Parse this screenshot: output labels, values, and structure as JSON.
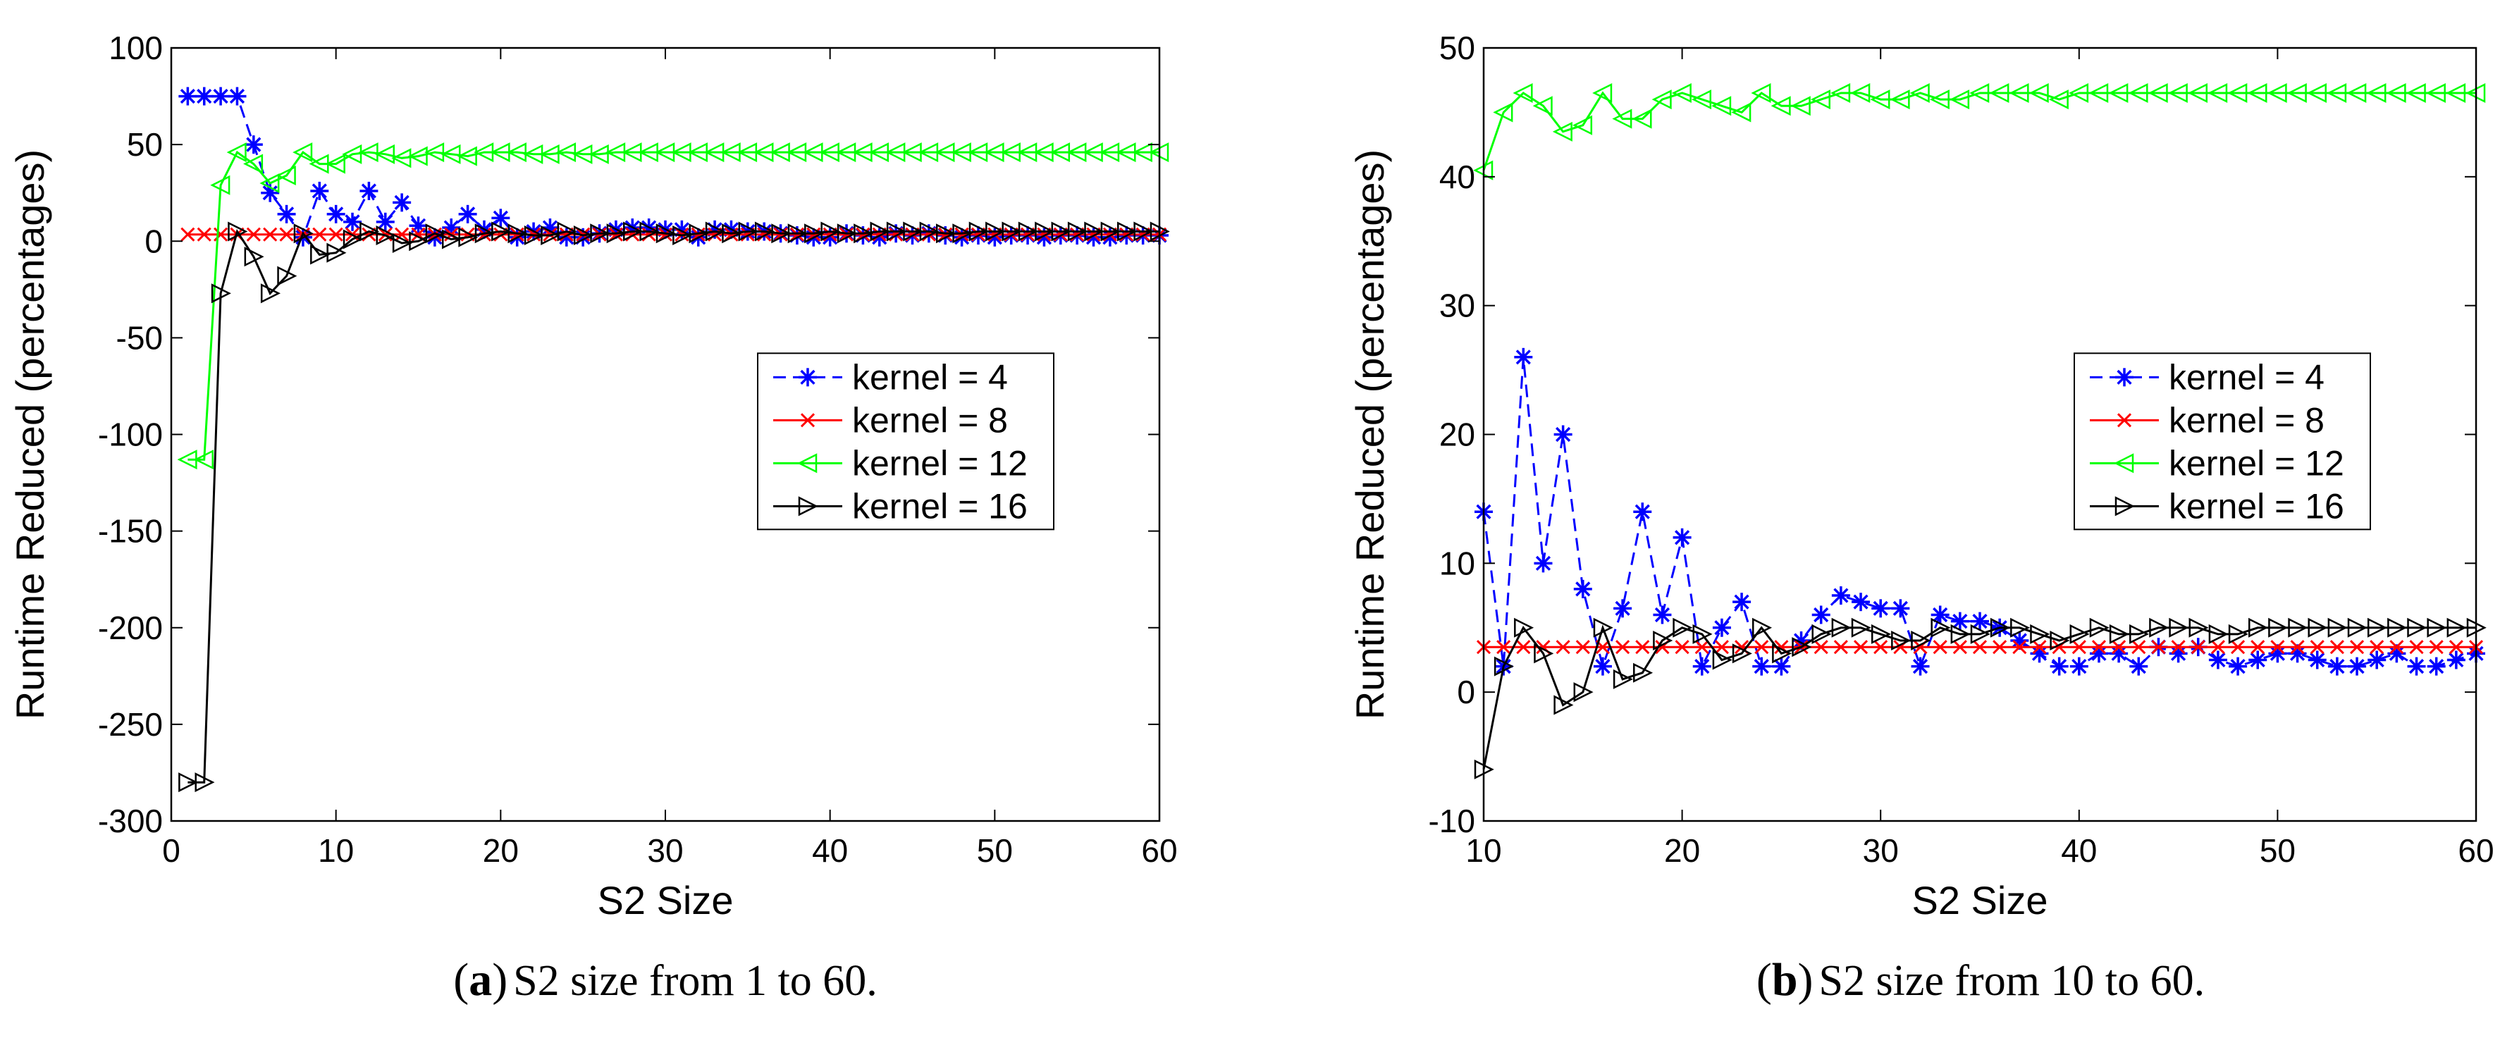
{
  "chart_data": [
    {
      "type": "line",
      "id": "a",
      "xlabel": "S2 Size",
      "ylabel": "Runtime Reduced (percentages)",
      "xlim": [
        0,
        60
      ],
      "ylim": [
        -300,
        100
      ],
      "xticks": [
        0,
        10,
        20,
        30,
        40,
        50,
        60
      ],
      "yticks": [
        -300,
        -250,
        -200,
        -150,
        -100,
        -50,
        0,
        50,
        100
      ],
      "legend_position": "center-right",
      "caption": {
        "tag": "a",
        "text": "S2 size from 1 to 60."
      },
      "series": [
        {
          "name": "kernel = 4",
          "color": "#0000ff",
          "marker": "asterisk",
          "line": "dashed",
          "x": [
            1,
            2,
            3,
            4,
            5,
            6,
            7,
            8,
            9,
            10,
            11,
            12,
            13,
            14,
            15,
            16,
            17,
            18,
            19,
            20,
            21,
            22,
            23,
            24,
            25,
            26,
            27,
            28,
            29,
            30,
            31,
            32,
            33,
            34,
            35,
            36,
            37,
            38,
            39,
            40,
            41,
            42,
            43,
            44,
            45,
            46,
            47,
            48,
            49,
            50,
            51,
            52,
            53,
            54,
            55,
            56,
            57,
            58,
            59,
            60
          ],
          "values": [
            75,
            75,
            75,
            75,
            50,
            25,
            14,
            2,
            26,
            14,
            10,
            26,
            10,
            20,
            8,
            2,
            7,
            14,
            6,
            12,
            2,
            5,
            7,
            2,
            2,
            4,
            6,
            7,
            7,
            6,
            6,
            2,
            6,
            6,
            5,
            5,
            4,
            3,
            2,
            2,
            4,
            3,
            2,
            4,
            3,
            4,
            3,
            2,
            3,
            2,
            3,
            3,
            2,
            3,
            3,
            2,
            2,
            3,
            3,
            3
          ]
        },
        {
          "name": "kernel = 8",
          "color": "#ff0000",
          "marker": "x",
          "line": "solid",
          "x": [
            1,
            2,
            3,
            4,
            5,
            6,
            7,
            8,
            9,
            10,
            11,
            12,
            13,
            14,
            15,
            16,
            17,
            18,
            19,
            20,
            21,
            22,
            23,
            24,
            25,
            26,
            27,
            28,
            29,
            30,
            31,
            32,
            33,
            34,
            35,
            36,
            37,
            38,
            39,
            40,
            41,
            42,
            43,
            44,
            45,
            46,
            47,
            48,
            49,
            50,
            51,
            52,
            53,
            54,
            55,
            56,
            57,
            58,
            59,
            60
          ],
          "values": [
            3.5,
            3.5,
            3.5,
            3.5,
            3.5,
            3.5,
            3.5,
            3.5,
            3.5,
            3.5,
            3.5,
            3.5,
            3.5,
            3.5,
            3.5,
            3.5,
            3.5,
            3.5,
            3.5,
            3.5,
            3.5,
            3.5,
            3.5,
            3.5,
            3.5,
            3.5,
            3.5,
            3.5,
            3.5,
            3.5,
            3.5,
            3.5,
            3.5,
            3.5,
            3.5,
            3.5,
            3.5,
            3.5,
            3.5,
            3.5,
            3.5,
            3.5,
            3.5,
            3.5,
            3.5,
            3.5,
            3.5,
            3.5,
            3.5,
            3.5,
            3.5,
            3.5,
            3.5,
            3.5,
            3.5,
            3.5,
            3.5,
            3.5,
            3.5,
            3.5
          ]
        },
        {
          "name": "kernel = 12",
          "color": "#00ff00",
          "marker": "triangle-left",
          "line": "solid",
          "x": [
            1,
            2,
            3,
            4,
            5,
            6,
            7,
            8,
            9,
            10,
            11,
            12,
            13,
            14,
            15,
            16,
            17,
            18,
            19,
            20,
            21,
            22,
            23,
            24,
            25,
            26,
            27,
            28,
            29,
            30,
            31,
            32,
            33,
            34,
            35,
            36,
            37,
            38,
            39,
            40,
            41,
            42,
            43,
            44,
            45,
            46,
            47,
            48,
            49,
            50,
            51,
            52,
            53,
            54,
            55,
            56,
            57,
            58,
            59,
            60
          ],
          "values": [
            -113,
            -113,
            29,
            46,
            40,
            30,
            34,
            46,
            40,
            40,
            45,
            46,
            45,
            43,
            44,
            46,
            45,
            44,
            46,
            46,
            46,
            45,
            45,
            46,
            45,
            45,
            46,
            46,
            46,
            46,
            46,
            46,
            46,
            46,
            46,
            46,
            46,
            46,
            46,
            46,
            46,
            46,
            46,
            46,
            46,
            46,
            46,
            46,
            46,
            46,
            46,
            46,
            46,
            46,
            46,
            46,
            46,
            46,
            46,
            46
          ]
        },
        {
          "name": "kernel = 16",
          "color": "#000000",
          "marker": "triangle-right",
          "line": "solid",
          "x": [
            1,
            2,
            3,
            4,
            5,
            6,
            7,
            8,
            9,
            10,
            11,
            12,
            13,
            14,
            15,
            16,
            17,
            18,
            19,
            20,
            21,
            22,
            23,
            24,
            25,
            26,
            27,
            28,
            29,
            30,
            31,
            32,
            33,
            34,
            35,
            36,
            37,
            38,
            39,
            40,
            41,
            42,
            43,
            44,
            45,
            46,
            47,
            48,
            49,
            50,
            51,
            52,
            53,
            54,
            55,
            56,
            57,
            58,
            59,
            60
          ],
          "values": [
            -280,
            -280,
            -27,
            5,
            -8,
            -27,
            -18,
            4,
            -7,
            -6,
            1,
            5,
            3,
            -1,
            0,
            4,
            1,
            2,
            4,
            5,
            4,
            3,
            3,
            5,
            3,
            4,
            4,
            5,
            5,
            4,
            3,
            4,
            5,
            4,
            5,
            5,
            4,
            4,
            4,
            5,
            4,
            4,
            5,
            5,
            5,
            5,
            4,
            4,
            5,
            5,
            5,
            5,
            5,
            5,
            5,
            5,
            5,
            5,
            5,
            5
          ]
        }
      ]
    },
    {
      "type": "line",
      "id": "b",
      "xlabel": "S2 Size",
      "ylabel": "Runtime Reduced (percentages)",
      "xlim": [
        10,
        60
      ],
      "ylim": [
        -10,
        50
      ],
      "xticks": [
        10,
        20,
        30,
        40,
        50,
        60
      ],
      "yticks": [
        -10,
        0,
        10,
        20,
        30,
        40,
        50
      ],
      "legend_position": "center-right",
      "caption": {
        "tag": "b",
        "text": "S2 size from 10 to 60."
      },
      "series": [
        {
          "name": "kernel = 4",
          "color": "#0000ff",
          "marker": "asterisk",
          "line": "dashed",
          "x": [
            10,
            11,
            12,
            13,
            14,
            15,
            16,
            17,
            18,
            19,
            20,
            21,
            22,
            23,
            24,
            25,
            26,
            27,
            28,
            29,
            30,
            31,
            32,
            33,
            34,
            35,
            36,
            37,
            38,
            39,
            40,
            41,
            42,
            43,
            44,
            45,
            46,
            47,
            48,
            49,
            50,
            51,
            52,
            53,
            54,
            55,
            56,
            57,
            58,
            59,
            60
          ],
          "values": [
            14,
            2,
            26,
            10,
            20,
            8,
            2,
            6.5,
            14,
            6,
            12,
            2,
            5,
            7,
            2,
            2,
            4,
            6,
            7.5,
            7,
            6.5,
            6.5,
            2,
            6,
            5.5,
            5.5,
            5,
            4,
            3,
            2,
            2,
            3,
            3,
            2,
            3.5,
            3,
            3.5,
            2.5,
            2,
            2.5,
            3,
            3,
            2.5,
            2,
            2,
            2.5,
            3,
            2,
            2,
            2.5,
            3
          ]
        },
        {
          "name": "kernel = 8",
          "color": "#ff0000",
          "marker": "x",
          "line": "solid",
          "x": [
            10,
            11,
            12,
            13,
            14,
            15,
            16,
            17,
            18,
            19,
            20,
            21,
            22,
            23,
            24,
            25,
            26,
            27,
            28,
            29,
            30,
            31,
            32,
            33,
            34,
            35,
            36,
            37,
            38,
            39,
            40,
            41,
            42,
            43,
            44,
            45,
            46,
            47,
            48,
            49,
            50,
            51,
            52,
            53,
            54,
            55,
            56,
            57,
            58,
            59,
            60
          ],
          "values": [
            3.5,
            3.5,
            3.5,
            3.5,
            3.5,
            3.5,
            3.5,
            3.5,
            3.5,
            3.5,
            3.5,
            3.5,
            3.5,
            3.5,
            3.5,
            3.5,
            3.5,
            3.5,
            3.5,
            3.5,
            3.5,
            3.5,
            3.5,
            3.5,
            3.5,
            3.5,
            3.5,
            3.5,
            3.5,
            3.5,
            3.5,
            3.5,
            3.5,
            3.5,
            3.5,
            3.5,
            3.5,
            3.5,
            3.5,
            3.5,
            3.5,
            3.5,
            3.5,
            3.5,
            3.5,
            3.5,
            3.5,
            3.5,
            3.5,
            3.5,
            3.5
          ]
        },
        {
          "name": "kernel = 12",
          "color": "#00ff00",
          "marker": "triangle-left",
          "line": "solid",
          "x": [
            10,
            11,
            12,
            13,
            14,
            15,
            16,
            17,
            18,
            19,
            20,
            21,
            22,
            23,
            24,
            25,
            26,
            27,
            28,
            29,
            30,
            31,
            32,
            33,
            34,
            35,
            36,
            37,
            38,
            39,
            40,
            41,
            42,
            43,
            44,
            45,
            46,
            47,
            48,
            49,
            50,
            51,
            52,
            53,
            54,
            55,
            56,
            57,
            58,
            59,
            60
          ],
          "values": [
            40.5,
            45,
            46.5,
            45.5,
            43.5,
            44,
            46.5,
            44.5,
            44.5,
            46,
            46.5,
            46,
            45.5,
            45,
            46.5,
            45.5,
            45.5,
            46,
            46.5,
            46.5,
            46,
            46,
            46.5,
            46,
            46,
            46.5,
            46.5,
            46.5,
            46.5,
            46,
            46.5,
            46.5,
            46.5,
            46.5,
            46.5,
            46.5,
            46.5,
            46.5,
            46.5,
            46.5,
            46.5,
            46.5,
            46.5,
            46.5,
            46.5,
            46.5,
            46.5,
            46.5,
            46.5,
            46.5,
            46.5
          ]
        },
        {
          "name": "kernel = 16",
          "color": "#000000",
          "marker": "triangle-right",
          "line": "solid",
          "x": [
            10,
            11,
            12,
            13,
            14,
            15,
            16,
            17,
            18,
            19,
            20,
            21,
            22,
            23,
            24,
            25,
            26,
            27,
            28,
            29,
            30,
            31,
            32,
            33,
            34,
            35,
            36,
            37,
            38,
            39,
            40,
            41,
            42,
            43,
            44,
            45,
            46,
            47,
            48,
            49,
            50,
            51,
            52,
            53,
            54,
            55,
            56,
            57,
            58,
            59,
            60
          ],
          "values": [
            -6,
            2,
            5,
            3,
            -1,
            0,
            5,
            1,
            1.5,
            4,
            5,
            4.5,
            2.5,
            3,
            5,
            3,
            3.5,
            4.5,
            5,
            5,
            4.5,
            4,
            4,
            5,
            4.5,
            4.5,
            5,
            5,
            4.5,
            4,
            4.5,
            5,
            4.5,
            4.5,
            5,
            5,
            5,
            4.5,
            4.5,
            5,
            5,
            5,
            5,
            5,
            5,
            5,
            5,
            5,
            5,
            5,
            5
          ]
        }
      ]
    }
  ]
}
